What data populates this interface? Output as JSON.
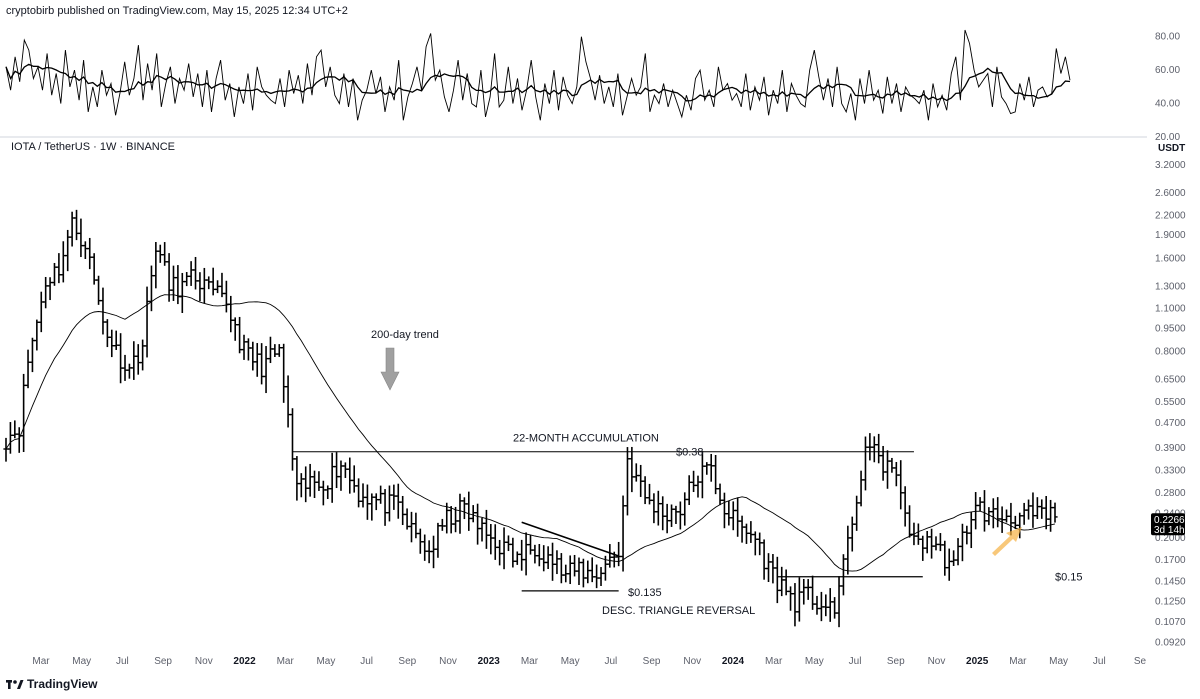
{
  "header": {
    "publisher_line": "cryptobirb published on TradingView.com, May 15, 2025 12:34 UTC+2",
    "symbol_line": "IOTA / TetherUS · 1W · BINANCE"
  },
  "footer": {
    "brand": "TradingView",
    "logo_icon": "tradingview-logo-icon"
  },
  "colors": {
    "background": "#ffffff",
    "bars": "#000000",
    "grid": "#e6e6e6",
    "price_tag_bg": "#000000",
    "price_tag_text": "#ffffff",
    "highlight_arrow": "#f5b041",
    "trend_arrow": "#a0a0a0"
  },
  "chart_data": [
    {
      "type": "line",
      "panel": "oscillator",
      "title": "",
      "y_ticks": [
        "80.00",
        "60.00",
        "40.00",
        "20.00"
      ],
      "ylim": [
        20,
        90
      ],
      "series": [
        {
          "values": [
            62,
            48,
            68,
            53,
            78,
            72,
            55,
            62,
            48,
            70,
            45,
            58,
            40,
            72,
            50,
            60,
            42,
            66,
            35,
            50,
            38,
            60,
            45,
            52,
            33,
            47,
            65,
            45,
            55,
            75,
            42,
            64,
            48,
            70,
            38,
            52,
            62,
            40,
            55,
            48,
            64,
            44,
            58,
            38,
            60,
            35,
            55,
            66,
            42,
            52,
            32,
            50,
            40,
            58,
            36,
            62,
            50,
            45,
            42,
            40,
            55,
            38,
            60,
            46,
            57,
            40,
            64,
            45,
            68,
            72,
            50,
            62,
            45,
            40,
            58,
            38,
            55,
            30,
            42,
            48,
            60,
            46,
            56,
            35,
            50,
            42,
            66,
            30,
            44,
            52,
            62,
            48,
            74,
            82,
            54,
            60,
            44,
            35,
            48,
            66,
            42,
            58,
            40,
            38,
            60,
            32,
            44,
            70,
            38,
            42,
            62,
            40,
            55,
            36,
            48,
            66,
            44,
            30,
            52,
            40,
            60,
            36,
            56,
            45,
            40,
            50,
            80,
            65,
            55,
            42,
            57,
            40,
            50,
            38,
            58,
            33,
            44,
            55,
            45,
            50,
            70,
            35,
            45,
            40,
            52,
            38,
            48,
            40,
            32,
            45,
            36,
            55,
            60,
            42,
            48,
            38,
            62,
            48,
            52,
            42,
            46,
            38,
            58,
            36,
            50,
            42,
            56,
            33,
            48,
            40,
            60,
            35,
            52,
            45,
            40,
            38,
            60,
            72,
            56,
            42,
            55,
            38,
            62,
            40,
            35,
            46,
            30,
            55,
            40,
            60,
            42,
            48,
            34,
            56,
            40,
            52,
            35,
            50,
            45,
            43,
            40,
            48,
            30,
            52,
            38,
            45,
            36,
            58,
            68,
            42,
            84,
            76,
            60,
            50,
            54,
            58,
            38,
            62,
            44,
            40,
            34,
            35,
            52,
            42,
            56,
            38,
            48,
            50,
            44,
            46,
            73,
            58,
            68,
            54
          ],
          "smoothing_window": 9
        }
      ]
    },
    {
      "type": "ohlc",
      "panel": "price",
      "title": "",
      "y_axis_title": "USDT",
      "y_scale": "log",
      "ylim": [
        0.087,
        3.45
      ],
      "y_ticks": [
        "3.2000",
        "2.6000",
        "2.2000",
        "1.9000",
        "1.6000",
        "1.3000",
        "1.1000",
        "0.9500",
        "0.8000",
        "0.6500",
        "0.5500",
        "0.4700",
        "0.3900",
        "0.3300",
        "0.2800",
        "0.2400",
        "0.2000",
        "0.1700",
        "0.1450",
        "0.1250",
        "0.1070",
        "0.0920"
      ],
      "x_ticks": [
        "Mar",
        "May",
        "Jul",
        "Sep",
        "Nov",
        "2022",
        "Mar",
        "May",
        "Jul",
        "Sep",
        "Nov",
        "2023",
        "Mar",
        "May",
        "Jul",
        "Sep",
        "Nov",
        "2024",
        "Mar",
        "May",
        "Jul",
        "Sep",
        "Nov",
        "2025",
        "Mar",
        "May",
        "Jul",
        "Se"
      ],
      "bold_x_ticks": [
        "2022",
        "2023",
        "2024",
        "2025"
      ],
      "bars": 239,
      "anchors": [
        [
          0,
          0.42
        ],
        [
          3,
          0.46
        ],
        [
          5,
          0.75
        ],
        [
          7,
          1.0
        ],
        [
          9,
          1.35
        ],
        [
          12,
          1.5
        ],
        [
          15,
          2.05
        ],
        [
          18,
          1.8
        ],
        [
          22,
          1.0
        ],
        [
          25,
          0.8
        ],
        [
          28,
          0.7
        ],
        [
          31,
          0.85
        ],
        [
          34,
          1.8
        ],
        [
          37,
          1.3
        ],
        [
          40,
          1.3
        ],
        [
          43,
          1.4
        ],
        [
          46,
          1.25
        ],
        [
          50,
          1.15
        ],
        [
          54,
          0.8
        ],
        [
          58,
          0.72
        ],
        [
          62,
          0.8
        ],
        [
          66,
          0.28
        ],
        [
          69,
          0.3
        ],
        [
          73,
          0.31
        ],
        [
          76,
          0.35
        ],
        [
          80,
          0.28
        ],
        [
          85,
          0.26
        ],
        [
          89,
          0.25
        ],
        [
          92,
          0.21
        ],
        [
          96,
          0.18
        ],
        [
          100,
          0.23
        ],
        [
          104,
          0.25
        ],
        [
          108,
          0.21
        ],
        [
          112,
          0.19
        ],
        [
          116,
          0.17
        ],
        [
          120,
          0.19
        ],
        [
          124,
          0.17
        ],
        [
          127,
          0.15
        ],
        [
          130,
          0.16
        ],
        [
          133,
          0.15
        ],
        [
          137,
          0.17
        ],
        [
          139,
          0.18
        ],
        [
          141,
          0.36
        ],
        [
          145,
          0.27
        ],
        [
          149,
          0.24
        ],
        [
          153,
          0.25
        ],
        [
          157,
          0.32
        ],
        [
          160,
          0.33
        ],
        [
          163,
          0.25
        ],
        [
          166,
          0.22
        ],
        [
          170,
          0.2
        ],
        [
          173,
          0.16
        ],
        [
          176,
          0.14
        ],
        [
          179,
          0.125
        ],
        [
          182,
          0.13
        ],
        [
          186,
          0.12
        ],
        [
          188,
          0.11
        ],
        [
          190,
          0.18
        ],
        [
          193,
          0.24
        ],
        [
          195,
          0.42
        ],
        [
          198,
          0.35
        ],
        [
          200,
          0.35
        ],
        [
          203,
          0.28
        ],
        [
          206,
          0.19
        ],
        [
          209,
          0.2
        ],
        [
          212,
          0.18
        ],
        [
          215,
          0.16
        ],
        [
          217,
          0.2
        ],
        [
          219,
          0.24
        ],
        [
          221,
          0.25
        ],
        [
          223,
          0.235
        ]
      ],
      "last_price": "0.2266",
      "last_bar_countdown": "3d 14h",
      "moving_average": {
        "label": "200-day trend",
        "window": 28
      },
      "annotations": {
        "accumulation_label": "22-MONTH ACCUMULATION",
        "resistance_label": "$0.38",
        "resistance_price": 0.38,
        "triangle_support_label": "$0.135",
        "triangle_support_price": 0.135,
        "triangle_label": "DESC. TRIANGLE REVERSAL",
        "support_label": "$0.15",
        "support_price": 0.15
      }
    }
  ]
}
